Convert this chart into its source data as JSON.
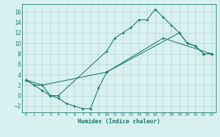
{
  "xlabel": "Humidex (Indice chaleur)",
  "bg_color": "#d8f0f0",
  "grid_color": "#b8d8d8",
  "line_color": "#1e7a6e",
  "spine_color": "#1e7a6e",
  "xlim": [
    -0.5,
    23.5
  ],
  "ylim": [
    -3.2,
    17.5
  ],
  "xticks": [
    0,
    1,
    2,
    3,
    4,
    5,
    6,
    7,
    8,
    9,
    10,
    11,
    12,
    13,
    14,
    15,
    16,
    17,
    18,
    19,
    20,
    21,
    22,
    23
  ],
  "yticks": [
    -2,
    0,
    2,
    4,
    6,
    8,
    10,
    12,
    14,
    16
  ],
  "line1_x": [
    0,
    1,
    2,
    3,
    4,
    10,
    11,
    12,
    13,
    14,
    15,
    16,
    17,
    18,
    19,
    20,
    21,
    22,
    23
  ],
  "line1_y": [
    3,
    2,
    2,
    0,
    0,
    8.5,
    11,
    12,
    13,
    14.5,
    14.5,
    16.5,
    15,
    13.5,
    12,
    10,
    9.5,
    8,
    8
  ],
  "line2_x": [
    0,
    1,
    2,
    3,
    4,
    5,
    6,
    7,
    8,
    9,
    10,
    19,
    20,
    21,
    22,
    23
  ],
  "line2_y": [
    3,
    2,
    1,
    0,
    -0.5,
    -1.5,
    -2,
    -2.5,
    -2.5,
    1.5,
    4.5,
    12,
    10,
    9.5,
    8,
    8
  ],
  "line3_x": [
    0,
    2,
    10,
    17,
    23
  ],
  "line3_y": [
    3,
    2,
    4.5,
    11,
    8
  ]
}
